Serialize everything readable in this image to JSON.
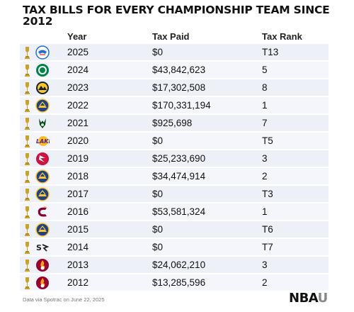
{
  "title": "TAX BILLS FOR EVERY CHAMPIONSHIP TEAM SINCE  2012",
  "headers": {
    "year": "Year",
    "tax": "Tax Paid",
    "rank": "Tax Rank"
  },
  "rows": [
    {
      "year": "2025",
      "tax": "$0",
      "rank": "T13",
      "logo": "thunder-logo"
    },
    {
      "year": "2024",
      "tax": "$43,842,623",
      "rank": "5",
      "logo": "celtics-logo"
    },
    {
      "year": "2023",
      "tax": "$17,302,508",
      "rank": "8",
      "logo": "nuggets-logo"
    },
    {
      "year": "2022",
      "tax": "$170,331,194",
      "rank": "1",
      "logo": "warriors-logo"
    },
    {
      "year": "2021",
      "tax": "$925,698",
      "rank": "7",
      "logo": "bucks-logo"
    },
    {
      "year": "2020",
      "tax": "$0",
      "rank": "T5",
      "logo": "lakers-logo"
    },
    {
      "year": "2019",
      "tax": "$25,233,690",
      "rank": "3",
      "logo": "raptors-logo"
    },
    {
      "year": "2018",
      "tax": "$34,474,914",
      "rank": "2",
      "logo": "warriors-logo"
    },
    {
      "year": "2017",
      "tax": "$0",
      "rank": "T3",
      "logo": "warriors-logo"
    },
    {
      "year": "2016",
      "tax": "$53,581,324",
      "rank": "1",
      "logo": "cavaliers-logo"
    },
    {
      "year": "2015",
      "tax": "$0",
      "rank": "T6",
      "logo": "warriors-logo"
    },
    {
      "year": "2014",
      "tax": "$0",
      "rank": "T7",
      "logo": "spurs-logo"
    },
    {
      "year": "2013",
      "tax": "$24,062,210",
      "rank": "3",
      "logo": "heat-logo"
    },
    {
      "year": "2012",
      "tax": "$13,285,596",
      "rank": "2",
      "logo": "heat-logo"
    }
  ],
  "footer": "Data via Spotrac on June 22, 2025",
  "brand": {
    "main": "NBA",
    "accent": "U"
  },
  "colors": {
    "row_odd": "#eef0f7",
    "row_even": "#f5f6fb",
    "trophy": "#c9a227"
  }
}
